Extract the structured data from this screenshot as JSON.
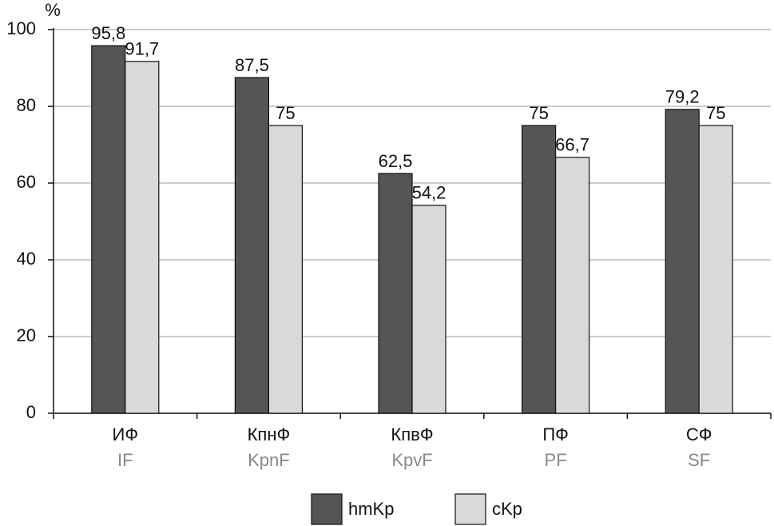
{
  "chart_data": {
    "type": "bar",
    "y_label": "%",
    "categories": [
      "ИФ",
      "КпнФ",
      "КпвФ",
      "ПФ",
      "СФ"
    ],
    "category_translations": [
      "IF",
      "KpnF",
      "KpvF",
      "PF",
      "SF"
    ],
    "series": [
      {
        "name": "hmKp",
        "color": "#555555",
        "values": [
          95.8,
          87.5,
          62.5,
          75,
          79.2
        ],
        "value_labels": [
          "95,8",
          "87,5",
          "62,5",
          "75",
          "79,2"
        ]
      },
      {
        "name": "cKp",
        "color": "#d9d9d9",
        "values": [
          91.7,
          75,
          54.2,
          66.7,
          75
        ],
        "value_labels": [
          "91,7",
          "75",
          "54,2",
          "66,7",
          "75"
        ]
      }
    ],
    "ylim": [
      0,
      100
    ],
    "yticks": [
      0,
      20,
      40,
      60,
      80,
      100
    ],
    "grid": true
  }
}
